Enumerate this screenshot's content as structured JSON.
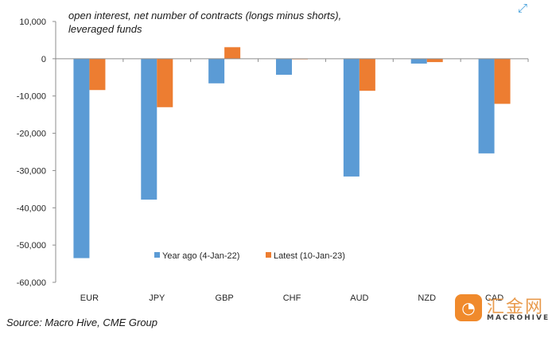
{
  "note_line1": "open interest, net number of contracts (longs minus shorts),",
  "note_line2": "leveraged funds",
  "source": "Source: Macro Hive, CME Group",
  "watermark": {
    "cn": "汇金网",
    "en": "MACROHIVE"
  },
  "chart_data": {
    "type": "bar",
    "title": "",
    "xlabel": "",
    "ylabel": "",
    "categories": [
      "EUR",
      "JPY",
      "GBP",
      "CHF",
      "AUD",
      "NZD",
      "CAD"
    ],
    "series": [
      {
        "name": "Year ago (4-Jan-22)",
        "color": "#5b9bd5",
        "values": [
          -53500,
          -37800,
          -6600,
          -4300,
          -31600,
          -1300,
          -25400
        ]
      },
      {
        "name": "Latest (10-Jan-23)",
        "color": "#ed7d31",
        "values": [
          -8400,
          -13000,
          3100,
          -100,
          -8600,
          -900,
          -12100
        ]
      }
    ],
    "ylim": [
      -60000,
      10000
    ],
    "yticks": [
      "10,000",
      "0",
      "-10,000",
      "-20,000",
      "-30,000",
      "-40,000",
      "-50,000",
      "-60,000"
    ],
    "grid": false,
    "legend_position": "bottom-center"
  }
}
